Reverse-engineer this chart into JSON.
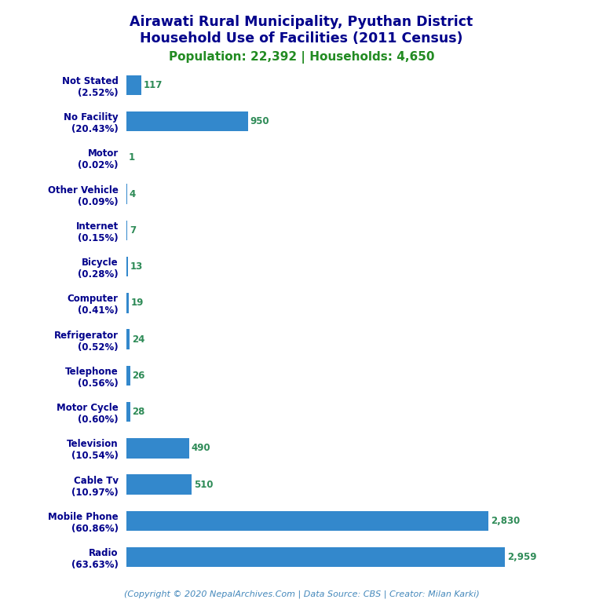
{
  "title_line1": "Airawati Rural Municipality, Pyuthan District",
  "title_line2": "Household Use of Facilities (2011 Census)",
  "subtitle": "Population: 22,392 | Households: 4,650",
  "footer": "(Copyright © 2020 NepalArchives.Com | Data Source: CBS | Creator: Milan Karki)",
  "categories": [
    "Not Stated\n(2.52%)",
    "No Facility\n(20.43%)",
    "Motor\n(0.02%)",
    "Other Vehicle\n(0.09%)",
    "Internet\n(0.15%)",
    "Bicycle\n(0.28%)",
    "Computer\n(0.41%)",
    "Refrigerator\n(0.52%)",
    "Telephone\n(0.56%)",
    "Motor Cycle\n(0.60%)",
    "Television\n(10.54%)",
    "Cable Tv\n(10.97%)",
    "Mobile Phone\n(60.86%)",
    "Radio\n(63.63%)"
  ],
  "values": [
    117,
    950,
    1,
    4,
    7,
    13,
    19,
    24,
    26,
    28,
    490,
    510,
    2830,
    2959
  ],
  "bar_color": "#3388cc",
  "value_color": "#2e8b57",
  "title_color": "#00008b",
  "subtitle_color": "#228b22",
  "footer_color": "#4488bb",
  "background_color": "#ffffff",
  "xlim": [
    0,
    3300
  ],
  "bar_height": 0.55
}
